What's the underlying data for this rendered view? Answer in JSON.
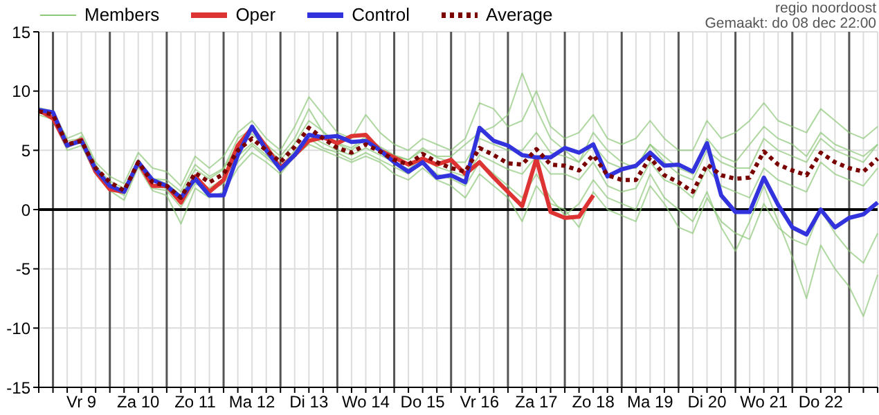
{
  "chart_data": {
    "type": "line",
    "subtitle": "regio noordoost",
    "annotations": [
      "Gemaakt: do 08 dec 22:00"
    ],
    "categories": [
      null,
      null,
      null,
      "Vr 9",
      null,
      null,
      null,
      "Za 10",
      null,
      null,
      null,
      "Zo 11",
      null,
      null,
      null,
      "Ma 12",
      null,
      null,
      null,
      "Di 13",
      null,
      null,
      null,
      "Wo 14",
      null,
      null,
      null,
      "Do 15",
      null,
      null,
      null,
      "Vr 16",
      null,
      null,
      null,
      "Za 17",
      null,
      null,
      null,
      "Zo 18",
      null,
      null,
      null,
      "Ma 19",
      null,
      null,
      null,
      "Di 20",
      null,
      null,
      null,
      "Wo 21",
      null,
      null,
      null,
      "Do 22",
      null,
      null,
      null,
      null
    ],
    "series": [
      {
        "name": "Members",
        "color": "#8cc878",
        "values": [
          8.6,
          8.3,
          6.0,
          6.5,
          4.0,
          2.8,
          2.2,
          4.8,
          3.5,
          3.2,
          2.0,
          4.5,
          3.5,
          4.5,
          6.5,
          7.5,
          6.0,
          5.0,
          7.0,
          9.5,
          8.0,
          6.5,
          6.0,
          8.0,
          6.5,
          5.5,
          5.0,
          6.0,
          5.5,
          5.0,
          6.0,
          9.0,
          8.5,
          7.0,
          7.5,
          10.0,
          7.0,
          6.0,
          6.5,
          8.0,
          6.0,
          5.5,
          6.0,
          7.5,
          6.0,
          5.0,
          5.0,
          7.5,
          6.0,
          6.5,
          7.5,
          9.0,
          7.5,
          7.0,
          6.5,
          8.5,
          7.5,
          6.5,
          6.0,
          7.0
        ]
      },
      {
        "color": "#8cc878",
        "values": [
          8.2,
          7.8,
          5.2,
          6.2,
          3.8,
          2.0,
          1.4,
          4.2,
          2.6,
          2.5,
          1.5,
          3.8,
          2.8,
          3.5,
          6.0,
          6.8,
          5.5,
          4.5,
          6.0,
          8.5,
          6.5,
          5.5,
          5.0,
          6.0,
          5.0,
          4.5,
          4.2,
          5.0,
          4.5,
          4.5,
          5.5,
          6.5,
          7.0,
          8.0,
          11.5,
          8.5,
          6.0,
          5.0,
          4.0,
          6.5,
          5.0,
          4.0,
          3.5,
          5.5,
          4.5,
          3.5,
          3.0,
          6.0,
          4.5,
          4.0,
          5.5,
          7.0,
          6.0,
          5.5,
          4.5,
          6.5,
          5.5,
          5.0,
          4.5,
          5.5
        ]
      },
      {
        "color": "#8cc878",
        "values": [
          8.4,
          8.0,
          5.5,
          5.6,
          3.2,
          2.2,
          1.6,
          3.8,
          2.0,
          1.8,
          0.5,
          2.5,
          1.8,
          2.6,
          4.5,
          5.6,
          4.6,
          3.6,
          5.0,
          6.2,
          5.6,
          5.0,
          4.6,
          5.2,
          4.6,
          4.0,
          3.4,
          4.4,
          3.6,
          3.2,
          2.8,
          4.6,
          4.0,
          3.4,
          3.0,
          4.5,
          3.0,
          3.0,
          2.5,
          4.0,
          2.0,
          1.5,
          1.8,
          4.0,
          2.5,
          2.0,
          1.0,
          3.5,
          2.0,
          1.5,
          1.0,
          3.5,
          2.5,
          2.0,
          1.5,
          4.0,
          3.0,
          2.5,
          2.0,
          3.5
        ]
      },
      {
        "color": "#8cc878",
        "values": [
          8.0,
          7.6,
          5.0,
          5.4,
          3.0,
          1.6,
          0.8,
          3.6,
          1.6,
          1.2,
          -1.2,
          1.8,
          1.0,
          1.5,
          3.5,
          4.8,
          4.0,
          3.0,
          4.5,
          5.5,
          5.0,
          4.5,
          4.0,
          4.5,
          4.0,
          3.0,
          2.5,
          3.5,
          2.5,
          2.0,
          1.0,
          3.0,
          2.0,
          1.0,
          -1.0,
          2.0,
          0.5,
          0.0,
          -1.5,
          1.5,
          0.0,
          -0.5,
          -1.0,
          2.0,
          0.5,
          -1.5,
          -2.0,
          1.0,
          -1.0,
          -2.0,
          -2.5,
          0.5,
          -1.5,
          -2.5,
          -3.0,
          0.0,
          -2.0,
          -3.5,
          -4.5,
          -2.0
        ]
      },
      {
        "color": "#8cc878",
        "values": [
          8.2,
          7.9,
          5.3,
          5.8,
          3.4,
          1.8,
          1.2,
          3.9,
          1.8,
          1.6,
          0.2,
          2.2,
          1.6,
          2.2,
          4.0,
          5.4,
          4.4,
          3.4,
          4.8,
          6.0,
          5.2,
          4.8,
          4.2,
          4.8,
          4.2,
          3.6,
          3.0,
          4.0,
          3.0,
          2.6,
          2.0,
          4.0,
          3.0,
          2.0,
          1.0,
          3.0,
          1.0,
          -0.5,
          0.5,
          2.5,
          1.0,
          0.5,
          0.0,
          3.0,
          1.0,
          0.0,
          -1.0,
          1.5,
          -1.5,
          -3.5,
          -1.0,
          2.0,
          -1.0,
          -4.0,
          -7.5,
          -3.0,
          -5.0,
          -6.5,
          -9.0,
          -5.5
        ]
      },
      {
        "color": "#8cc878",
        "values": [
          8.5,
          8.2,
          5.8,
          6.0,
          3.6,
          2.4,
          1.8,
          4.2,
          2.6,
          2.2,
          1.2,
          3.4,
          2.6,
          3.4,
          5.5,
          6.4,
          5.2,
          4.2,
          5.6,
          7.5,
          6.6,
          5.6,
          5.2,
          6.2,
          5.3,
          4.6,
          4.2,
          5.2,
          4.4,
          4.0,
          4.0,
          6.0,
          5.5,
          5.0,
          5.0,
          6.5,
          4.8,
          4.5,
          4.0,
          5.5,
          4.0,
          3.5,
          3.5,
          5.5,
          4.0,
          3.0,
          2.5,
          5.0,
          4.0,
          3.5,
          3.5,
          6.0,
          5.0,
          4.5,
          4.0,
          6.0,
          5.0,
          4.5,
          4.0,
          5.5
        ]
      },
      {
        "name": "Oper",
        "color": "#dd3333",
        "values": [
          8.4,
          7.7,
          5.4,
          5.9,
          3.2,
          1.7,
          1.5,
          4.0,
          2.0,
          2.0,
          0.6,
          2.8,
          1.5,
          2.5,
          5.4,
          6.9,
          5.3,
          3.5,
          4.6,
          5.8,
          6.1,
          5.6,
          6.2,
          6.3,
          5.0,
          4.4,
          3.8,
          4.3,
          3.8,
          4.2,
          3.0,
          4.0,
          2.7,
          1.5,
          0.3,
          4.3,
          -0.2,
          -0.7,
          -0.6,
          1.2,
          null,
          null,
          null,
          null,
          null,
          null,
          null,
          null,
          null,
          null,
          null,
          null,
          null,
          null,
          null,
          null,
          null,
          null,
          null,
          null
        ]
      },
      {
        "name": "Control",
        "color": "#3333dd",
        "values": [
          8.4,
          8.2,
          5.4,
          5.8,
          3.4,
          2.0,
          1.5,
          4.0,
          2.5,
          2.0,
          1.0,
          2.6,
          1.2,
          1.2,
          4.6,
          7.0,
          5.0,
          3.4,
          4.6,
          6.3,
          6.1,
          6.2,
          5.7,
          5.8,
          5.0,
          4.0,
          3.2,
          4.0,
          2.7,
          2.9,
          2.3,
          6.9,
          5.8,
          5.4,
          4.6,
          4.4,
          4.4,
          5.2,
          4.8,
          5.5,
          2.8,
          3.4,
          3.7,
          4.8,
          3.7,
          3.8,
          3.2,
          5.6,
          1.2,
          -0.2,
          -0.2,
          2.7,
          0.4,
          -1.5,
          -2.1,
          0.0,
          -1.5,
          -0.7,
          -0.4,
          0.6
        ]
      },
      {
        "name": "Average",
        "color": "#7a0000",
        "line_style": "dotted",
        "values": [
          8.3,
          8.0,
          5.5,
          5.8,
          3.5,
          2.3,
          1.6,
          4.0,
          2.3,
          2.0,
          1.0,
          3.1,
          2.3,
          3.0,
          5.0,
          6.0,
          5.0,
          4.0,
          5.3,
          6.9,
          6.0,
          5.2,
          4.8,
          5.5,
          4.9,
          4.2,
          3.8,
          4.7,
          4.0,
          3.5,
          3.2,
          5.2,
          4.6,
          3.9,
          3.8,
          5.1,
          3.8,
          3.7,
          3.3,
          4.6,
          2.9,
          2.5,
          2.5,
          4.4,
          2.9,
          2.3,
          1.5,
          3.8,
          2.9,
          2.6,
          2.7,
          4.9,
          3.8,
          3.3,
          2.9,
          4.8,
          4.0,
          3.5,
          3.2,
          4.3
        ]
      }
    ],
    "ylim": [
      -15,
      15
    ],
    "yticks": [
      -15,
      -10,
      -5,
      0,
      5,
      10,
      15
    ],
    "ref_lines": [
      {
        "axis": "y",
        "value": 0,
        "color": "#000000"
      }
    ],
    "grid": true,
    "legend": "top left",
    "marker": "none",
    "line_style": "solid"
  }
}
